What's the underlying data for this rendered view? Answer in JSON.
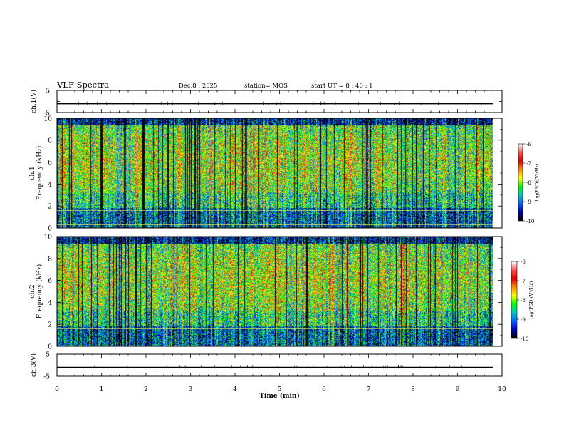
{
  "header": {
    "title": "VLF Spectra",
    "date": "Dec.8 , 2025",
    "station": "station= MOS",
    "start_ut": "start UT = 8 : 40 : 1"
  },
  "chart_data": [
    {
      "type": "line",
      "panel": "ch1-waveform",
      "ylabel": "ch.1(V)",
      "ylim": [
        -5,
        5
      ],
      "y_ticks": [
        "5",
        "-5"
      ],
      "x": [
        0,
        1,
        2,
        3,
        4,
        5,
        6,
        7,
        8,
        9,
        9.8
      ],
      "values": [
        -1,
        -1,
        -1,
        -1,
        -1,
        -1,
        -1,
        -1,
        -1,
        -1,
        -1
      ]
    },
    {
      "type": "heatmap",
      "panel": "ch1-spectrogram",
      "ylabel_top": "ch.1",
      "ylabel": "Frequency (kHz)",
      "ylim": [
        0,
        10
      ],
      "y_ticks": [
        "0",
        "2",
        "4",
        "6",
        "8",
        "10"
      ],
      "xlim": [
        0,
        10
      ],
      "data_extent_min": [
        0,
        9.8
      ],
      "colorbar": {
        "label": "log(PSD)(V²/Hz)",
        "range": [
          -10,
          -6
        ],
        "ticks": [
          "-6",
          "-7",
          "-8",
          "-9",
          "-10"
        ],
        "colors": [
          "#ffffff",
          "#ff5050",
          "#e00000",
          "#ff8c00",
          "#ffff00",
          "#00ff00",
          "#00c8c8",
          "#0064ff",
          "#0000c8",
          "#000000"
        ]
      },
      "horizontal_lines_khz": [
        0.3,
        1.6
      ]
    },
    {
      "type": "heatmap",
      "panel": "ch2-spectrogram",
      "ylabel_top": "ch.2",
      "ylabel": "Frequency (kHz)",
      "ylim": [
        0,
        10
      ],
      "y_ticks": [
        "0",
        "2",
        "4",
        "6",
        "8",
        "10"
      ],
      "xlim": [
        0,
        10
      ],
      "data_extent_min": [
        0,
        9.8
      ],
      "colorbar": {
        "label": "log(PSD)(V²/Hz)",
        "range": [
          -10,
          -6
        ],
        "ticks": [
          "-6",
          "-7",
          "-8",
          "-9",
          "-10"
        ],
        "colors": [
          "#ffffff",
          "#ff5050",
          "#e00000",
          "#ff8c00",
          "#ffff00",
          "#00ff00",
          "#00c8c8",
          "#0064ff",
          "#0000c8",
          "#000000"
        ]
      },
      "horizontal_lines_khz": [
        1.6
      ]
    },
    {
      "type": "line",
      "panel": "ch3-waveform",
      "ylabel": "ch.3(V)",
      "ylim": [
        -5,
        5
      ],
      "y_ticks": [
        "5",
        "-5"
      ],
      "x": [
        0,
        1,
        2,
        3,
        4,
        5,
        6,
        7,
        8,
        9,
        9.8
      ],
      "values": [
        -1,
        -1,
        -1,
        -1,
        -1,
        -1,
        -1,
        -1,
        -1,
        -1,
        -1
      ]
    }
  ],
  "x_axis": {
    "xlabel": "Time (min)",
    "ticks": [
      "0",
      "1",
      "2",
      "3",
      "4",
      "5",
      "6",
      "7",
      "8",
      "9",
      "10"
    ]
  }
}
